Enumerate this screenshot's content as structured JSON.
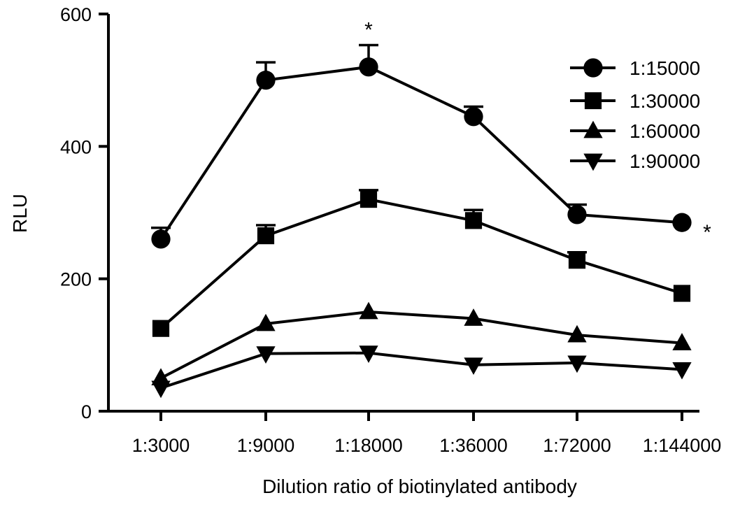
{
  "chart_data": {
    "type": "line",
    "xlabel": "Dilution ratio of biotinylated antibody",
    "ylabel": "RLU",
    "categories": [
      "1:3000",
      "1:9000",
      "1:18000",
      "1:36000",
      "1:72000",
      "1:144000"
    ],
    "ylim": [
      0,
      600
    ],
    "yticks": [
      0,
      200,
      400,
      600
    ],
    "grid": false,
    "legend_position": "top-right",
    "series": [
      {
        "name": "1:15000",
        "marker": "circle",
        "values": [
          260,
          500,
          520,
          445,
          297,
          285
        ],
        "error": [
          17,
          27,
          33,
          15,
          15,
          0
        ]
      },
      {
        "name": "1:30000",
        "marker": "square",
        "values": [
          125,
          265,
          320,
          288,
          228,
          178
        ],
        "error": [
          0,
          16,
          14,
          16,
          12,
          0
        ]
      },
      {
        "name": "1:60000",
        "marker": "triangle-up",
        "values": [
          50,
          132,
          150,
          140,
          115,
          103
        ],
        "error": [
          0,
          0,
          0,
          0,
          0,
          0
        ]
      },
      {
        "name": "1:90000",
        "marker": "triangle-down",
        "values": [
          35,
          87,
          88,
          70,
          73,
          63
        ],
        "error": [
          0,
          0,
          0,
          0,
          0,
          0
        ]
      }
    ],
    "annotations": [
      {
        "text": "*",
        "category": "1:18000",
        "series": "1:15000"
      },
      {
        "text": "*",
        "category": "1:144000",
        "series": "1:15000"
      }
    ]
  }
}
